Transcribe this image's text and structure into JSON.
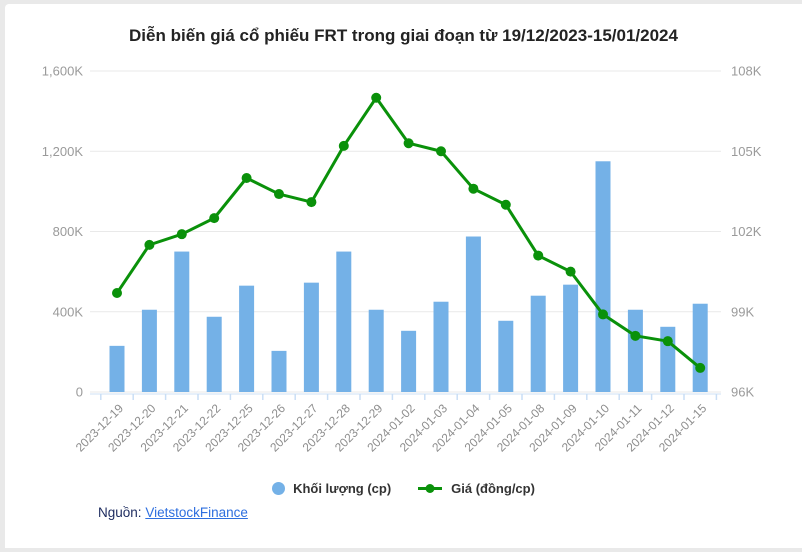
{
  "title": "Diễn biến giá cổ phiếu FRT trong giai đoạn từ 19/12/2023-15/01/2024",
  "legend": [
    {
      "label": "Khối lượng (cp)",
      "marker": "circle",
      "color": "#74b1e7"
    },
    {
      "label": "Giá (đồng/cp)",
      "marker": "line-dot",
      "color": "#0a910a"
    }
  ],
  "source": {
    "label": "Nguồn:",
    "link_text": "VietstockFinance"
  },
  "colors": {
    "bar": "#74b1e7",
    "line": "#0a910a",
    "grid": "#e9e9e9",
    "axis_line": "#cfe0f4",
    "axis_tick": "#c9def5",
    "y_tick_text": "#9a9a9a",
    "x_tick_text": "#8d8d8d",
    "title_text": "#232323"
  },
  "chart_data": {
    "type": "bar",
    "subtype": "bar+line combo, dual y-axis",
    "title": "Diễn biến giá cổ phiếu FRT trong giai đoạn từ 19/12/2023-15/01/2024",
    "categories": [
      "2023-12-19",
      "2023-12-20",
      "2023-12-21",
      "2023-12-22",
      "2023-12-25",
      "2023-12-26",
      "2023-12-27",
      "2023-12-28",
      "2023-12-29",
      "2024-01-02",
      "2024-01-03",
      "2024-01-04",
      "2024-01-05",
      "2024-01-08",
      "2024-01-09",
      "2024-01-10",
      "2024-01-11",
      "2024-01-12",
      "2024-01-15"
    ],
    "series": [
      {
        "name": "Khối lượng (cp)",
        "type": "bar",
        "axis": "left",
        "values": [
          230000,
          410000,
          700000,
          375000,
          530000,
          205000,
          545000,
          700000,
          410000,
          305000,
          450000,
          775000,
          355000,
          480000,
          535000,
          1150000,
          410000,
          325000,
          440000
        ]
      },
      {
        "name": "Giá (đồng/cp)",
        "type": "line",
        "axis": "right",
        "values": [
          99700,
          101500,
          101900,
          102500,
          104000,
          103400,
          103100,
          105200,
          107000,
          105300,
          105000,
          103600,
          103000,
          101100,
          100500,
          98900,
          98100,
          97900,
          96900
        ]
      }
    ],
    "left_axis": {
      "min": 0,
      "max": 1600000,
      "ticks": [
        "1,600K",
        "1,200K",
        "800K",
        "400K",
        "0"
      ]
    },
    "right_axis": {
      "min": 96000,
      "max": 108000,
      "ticks": [
        "108K",
        "105K",
        "102K",
        "99K",
        "96K"
      ]
    },
    "grid": true,
    "legend_position": "bottom"
  }
}
